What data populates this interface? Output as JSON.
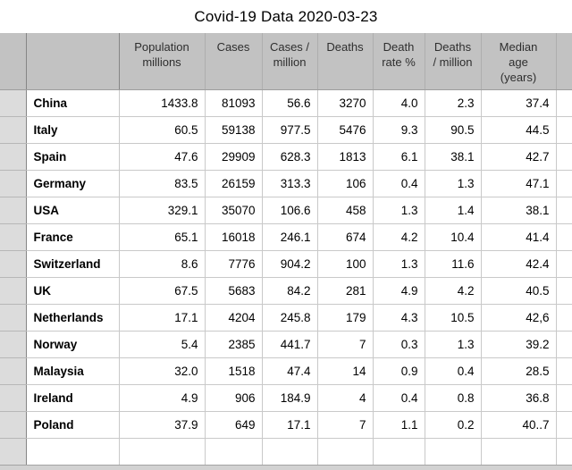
{
  "title": "Covid-19 Data 2020-03-23",
  "table": {
    "column_headers": [
      "Population\nmillions",
      "Cases",
      "Cases /\nmillion",
      "Deaths",
      "Death\nrate %",
      "Deaths\n/ million",
      "Median\nage\n(years)"
    ],
    "rows": [
      {
        "country": "China",
        "values": [
          "1433.8",
          "81093",
          "56.6",
          "3270",
          "4.0",
          "2.3",
          "37.4"
        ]
      },
      {
        "country": "Italy",
        "values": [
          "60.5",
          "59138",
          "977.5",
          "5476",
          "9.3",
          "90.5",
          "44.5"
        ]
      },
      {
        "country": "Spain",
        "values": [
          "47.6",
          "29909",
          "628.3",
          "1813",
          "6.1",
          "38.1",
          "42.7"
        ]
      },
      {
        "country": "Germany",
        "values": [
          "83.5",
          "26159",
          "313.3",
          "106",
          "0.4",
          "1.3",
          "47.1"
        ]
      },
      {
        "country": "USA",
        "values": [
          "329.1",
          "35070",
          "106.6",
          "458",
          "1.3",
          "1.4",
          "38.1"
        ]
      },
      {
        "country": "France",
        "values": [
          "65.1",
          "16018",
          "246.1",
          "674",
          "4.2",
          "10.4",
          "41.4"
        ]
      },
      {
        "country": "Switzerland",
        "values": [
          "8.6",
          "7776",
          "904.2",
          "100",
          "1.3",
          "11.6",
          "42.4"
        ]
      },
      {
        "country": "UK",
        "values": [
          "67.5",
          "5683",
          "84.2",
          "281",
          "4.9",
          "4.2",
          "40.5"
        ]
      },
      {
        "country": "Netherlands",
        "values": [
          "17.1",
          "4204",
          "245.8",
          "179",
          "4.3",
          "10.5",
          "42,6"
        ]
      },
      {
        "country": "Norway",
        "values": [
          "5.4",
          "2385",
          "441.7",
          "7",
          "0.3",
          "1.3",
          "39.2"
        ]
      },
      {
        "country": "Malaysia",
        "values": [
          "32.0",
          "1518",
          "47.4",
          "14",
          "0.9",
          "0.4",
          "28.5"
        ]
      },
      {
        "country": "Ireland",
        "values": [
          "4.9",
          "906",
          "184.9",
          "4",
          "0.4",
          "0.8",
          "36.8"
        ]
      },
      {
        "country": "Poland",
        "values": [
          "37.9",
          "649",
          "17.1",
          "7",
          "1.1",
          "0.2",
          "40..7"
        ]
      }
    ]
  },
  "colors": {
    "header_background": "#c2c2c2",
    "gutter_background": "#dcdcdc",
    "grid_line": "#c9c9c9",
    "gutter_divider": "#858585",
    "bottom_strip": "#d2d2d2"
  }
}
